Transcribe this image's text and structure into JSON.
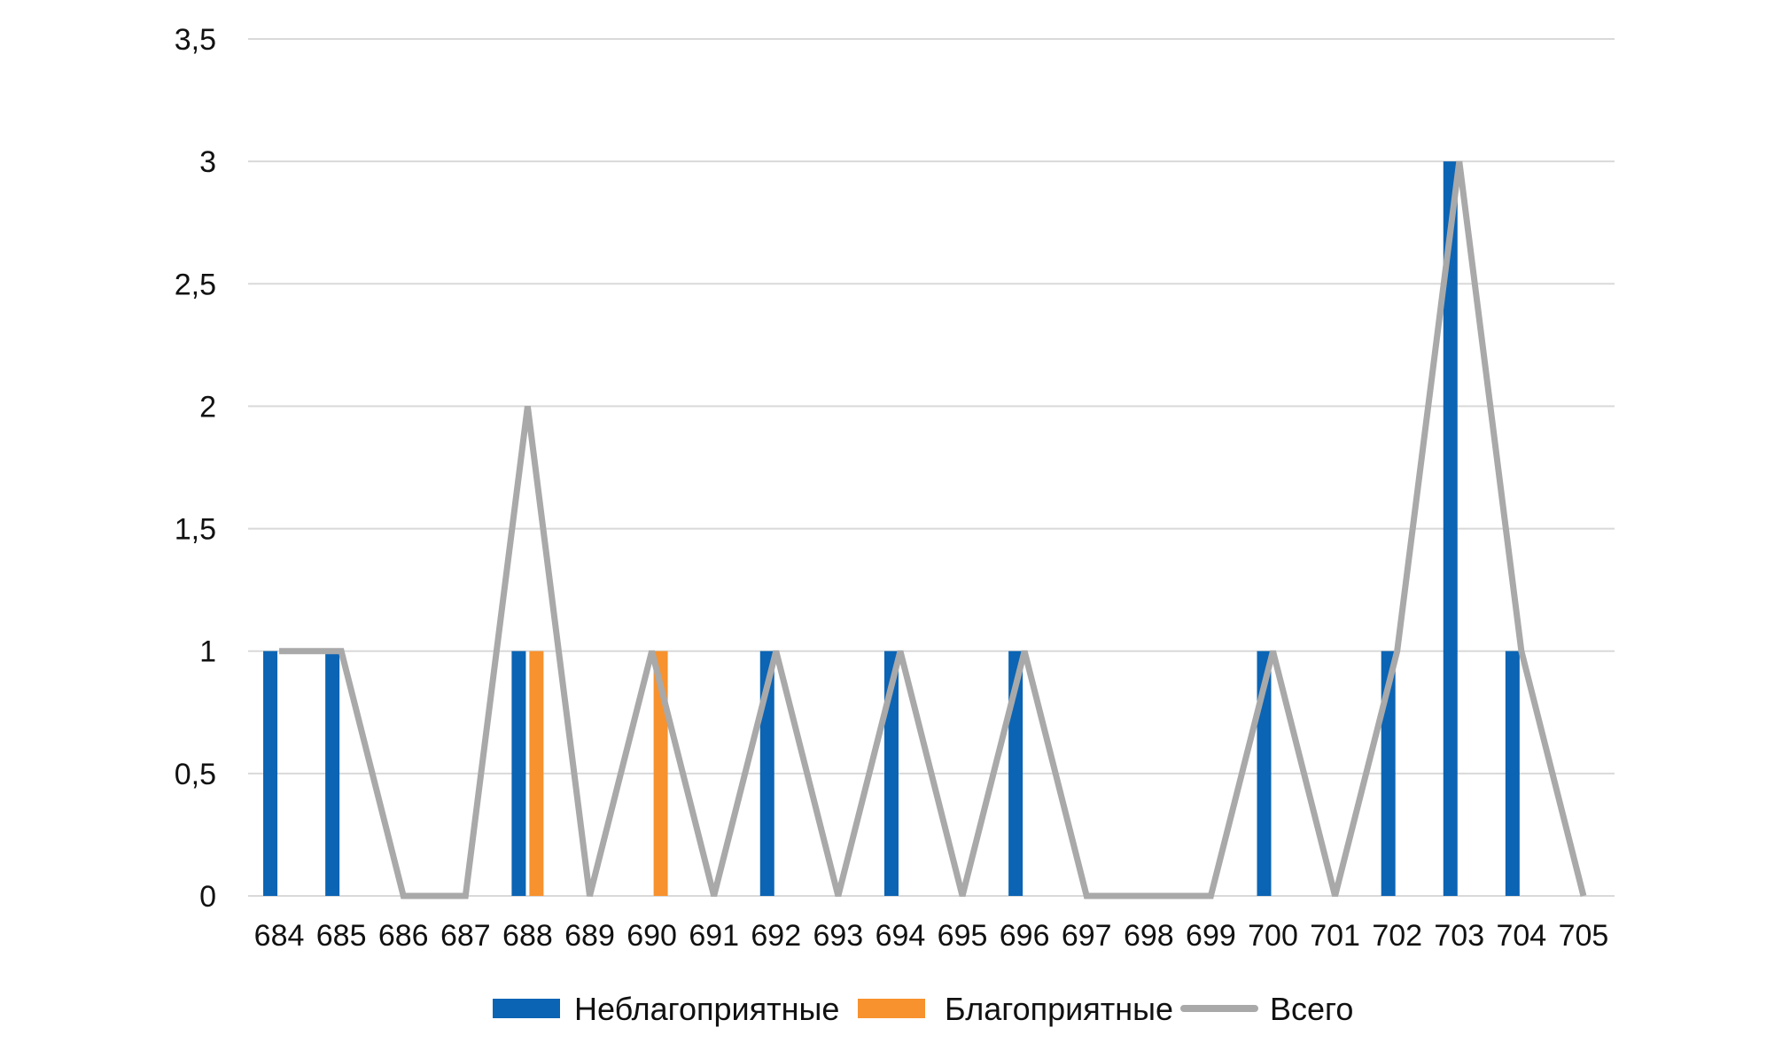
{
  "chart_data": {
    "type": "bar",
    "categories": [
      "684",
      "685",
      "686",
      "687",
      "688",
      "689",
      "690",
      "691",
      "692",
      "693",
      "694",
      "695",
      "696",
      "697",
      "698",
      "699",
      "700",
      "701",
      "702",
      "703",
      "704",
      "705"
    ],
    "series": [
      {
        "name": "Неблагоприятные",
        "kind": "bar",
        "color": "#0b64b4",
        "values": [
          1,
          1,
          0,
          0,
          1,
          0,
          0,
          0,
          1,
          0,
          1,
          0,
          1,
          0,
          0,
          0,
          1,
          0,
          1,
          3,
          1,
          0
        ]
      },
      {
        "name": "Благоприятные",
        "kind": "bar",
        "color": "#f7922e",
        "values": [
          0,
          0,
          0,
          0,
          1,
          0,
          1,
          0,
          0,
          0,
          0,
          0,
          0,
          0,
          0,
          0,
          0,
          0,
          0,
          0,
          0,
          0
        ]
      },
      {
        "name": "Всего",
        "kind": "line",
        "color": "#a9a9a9",
        "values": [
          1,
          1,
          0,
          0,
          2,
          0,
          1,
          0,
          1,
          0,
          1,
          0,
          1,
          0,
          0,
          0,
          1,
          0,
          1,
          3,
          1,
          0
        ]
      }
    ],
    "y_ticks": [
      "0",
      "0,5",
      "1",
      "1,5",
      "2",
      "2,5",
      "3",
      "3,5"
    ],
    "ylim": [
      0,
      3.5
    ],
    "grid": true,
    "legend_position": "bottom",
    "title": "",
    "xlabel": "",
    "ylabel": ""
  }
}
